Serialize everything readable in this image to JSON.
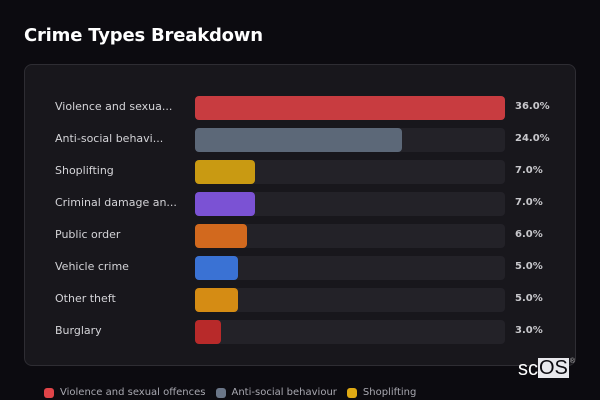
{
  "header": {
    "title": "Crime Types Breakdown"
  },
  "chart_data": {
    "type": "bar",
    "orientation": "horizontal",
    "title": "Crime Types Breakdown",
    "categories": [
      "Violence and sexua...",
      "Anti-social behavi...",
      "Shoplifting",
      "Criminal damage an...",
      "Public order",
      "Vehicle crime",
      "Other theft",
      "Burglary"
    ],
    "full_categories": [
      "Violence and sexual offences",
      "Anti-social behaviour",
      "Shoplifting"
    ],
    "values": [
      36.0,
      24.0,
      7.0,
      7.0,
      6.0,
      5.0,
      5.0,
      3.0
    ],
    "value_labels": [
      "36.0%",
      "24.0%",
      "7.0%",
      "7.0%",
      "6.0%",
      "5.0%",
      "5.0%",
      "3.0%"
    ],
    "colors": [
      "#c83c40",
      "#5c6878",
      "#c99a12",
      "#7b52d4",
      "#d2691e",
      "#3a72d4",
      "#d58c14",
      "#b82a2a"
    ],
    "xlim": [
      0,
      36
    ],
    "legend_position": "bottom",
    "grid": false
  },
  "legend": [
    {
      "label": "Violence and sexual offences",
      "color": "#e04448"
    },
    {
      "label": "Anti-social behaviour",
      "color": "#6a7688"
    },
    {
      "label": "Shoplifting",
      "color": "#e0aa14"
    }
  ],
  "logo": {
    "sc": "sc",
    "os": "OS",
    "reg": "®"
  }
}
